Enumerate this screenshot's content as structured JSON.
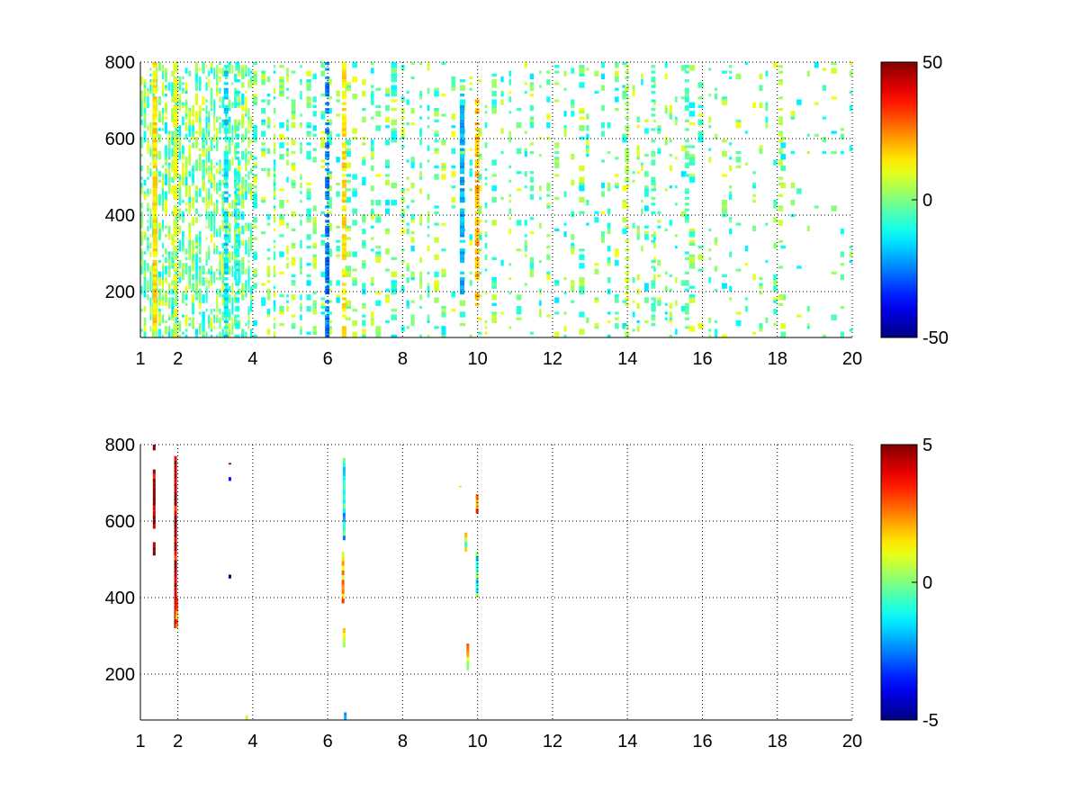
{
  "chart_data": [
    {
      "type": "heatmap",
      "title": "",
      "xlabel": "",
      "ylabel": "",
      "xlim": [
        1,
        20
      ],
      "ylim": [
        80,
        800
      ],
      "x_ticks": [
        1,
        2,
        4,
        6,
        8,
        10,
        12,
        14,
        16,
        18,
        20
      ],
      "y_ticks": [
        200,
        400,
        600,
        800
      ],
      "grid": true,
      "colormap": "jet",
      "color_range": [
        -50,
        50
      ],
      "colorbar_ticks": [
        -50,
        0,
        50
      ],
      "colorbar_position": "right",
      "bands": [
        {
          "x": 1.4,
          "y": [
            80,
            800
          ],
          "value": 15,
          "density": 0.9
        },
        {
          "x": 1.95,
          "y": [
            80,
            800
          ],
          "value": 10,
          "density": 0.75
        },
        {
          "x": 3.3,
          "y": [
            80,
            800
          ],
          "value": -15,
          "density": 0.6
        },
        {
          "x": 3.6,
          "y": [
            80,
            800
          ],
          "value": -10,
          "density": 0.55
        },
        {
          "x": 6.45,
          "y": [
            80,
            800
          ],
          "value": 15,
          "density": 0.7
        },
        {
          "x": 6.0,
          "y": [
            80,
            800
          ],
          "value": -25,
          "density": 0.5
        },
        {
          "x": 9.6,
          "y": [
            180,
            720
          ],
          "value": -20,
          "density": 0.8
        },
        {
          "x": 10.0,
          "y": [
            150,
            700
          ],
          "value": 20,
          "density": 0.6
        },
        {
          "x": 14.0,
          "y": [
            80,
            800
          ],
          "value": 5,
          "density": 0.4
        },
        {
          "x": 14.7,
          "y": [
            80,
            800
          ],
          "value": -5,
          "density": 0.4
        },
        {
          "x": 15.6,
          "y": [
            80,
            800
          ],
          "value": -5,
          "density": 0.35
        },
        {
          "x": 18.1,
          "y": [
            80,
            800
          ],
          "value": 5,
          "density": 0.35
        }
      ],
      "background": {
        "value_range": [
          -15,
          12
        ],
        "density_start": 0.55,
        "density_end": 0.12
      }
    },
    {
      "type": "heatmap",
      "title": "",
      "xlabel": "",
      "ylabel": "",
      "xlim": [
        1,
        20
      ],
      "ylim": [
        80,
        800
      ],
      "x_ticks": [
        1,
        2,
        4,
        6,
        8,
        10,
        12,
        14,
        16,
        18,
        20
      ],
      "y_ticks": [
        200,
        400,
        600,
        800
      ],
      "grid": true,
      "colormap": "jet",
      "color_range": [
        -5,
        5
      ],
      "colorbar_ticks": [
        -5,
        0,
        5
      ],
      "colorbar_position": "right",
      "segments": [
        {
          "x": 1.38,
          "y0": 580,
          "y1": 735,
          "value": 5
        },
        {
          "x": 1.38,
          "y0": 510,
          "y1": 545,
          "value": 5
        },
        {
          "x": 1.38,
          "y0": 785,
          "y1": 800,
          "value": 5
        },
        {
          "x": 1.95,
          "y0": 320,
          "y1": 770,
          "value": 4.5
        },
        {
          "x": 1.98,
          "y0": 320,
          "y1": 400,
          "value": 2
        },
        {
          "x": 3.4,
          "y0": 705,
          "y1": 715,
          "value": -4
        },
        {
          "x": 3.4,
          "y0": 450,
          "y1": 460,
          "value": -5
        },
        {
          "x": 3.4,
          "y0": 748,
          "y1": 752,
          "value": 4
        },
        {
          "x": 3.85,
          "y0": 80,
          "y1": 92,
          "value": 0.5
        },
        {
          "x": 6.42,
          "y0": 385,
          "y1": 520,
          "value": 2
        },
        {
          "x": 6.45,
          "y0": 550,
          "y1": 765,
          "value": -1.5
        },
        {
          "x": 6.45,
          "y0": 270,
          "y1": 320,
          "value": 1.5
        },
        {
          "x": 6.48,
          "y0": 80,
          "y1": 100,
          "value": -3
        },
        {
          "x": 9.7,
          "y0": 520,
          "y1": 570,
          "value": 0.5
        },
        {
          "x": 9.75,
          "y0": 210,
          "y1": 280,
          "value": 1.5
        },
        {
          "x": 9.55,
          "y0": 690,
          "y1": 692,
          "value": 3
        },
        {
          "x": 10.0,
          "y0": 400,
          "y1": 520,
          "value": -1
        },
        {
          "x": 10.0,
          "y0": 620,
          "y1": 670,
          "value": 3
        }
      ]
    }
  ]
}
